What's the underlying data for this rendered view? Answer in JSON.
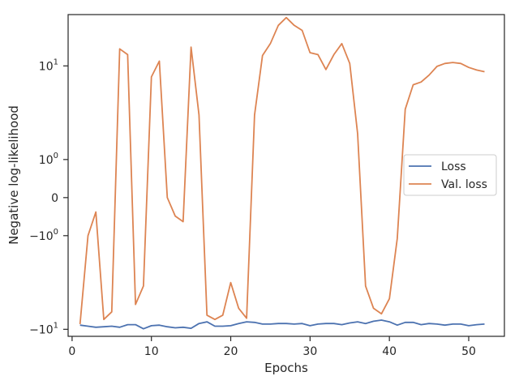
{
  "chart_data": {
    "type": "line",
    "xlabel": "Epochs",
    "ylabel": "Negative log-likelihood",
    "yscale": "symlog",
    "xlim": [
      -0.5,
      54.5
    ],
    "ylim": [
      -11.5,
      27
    ],
    "grid": false,
    "legend_position": "center-right",
    "x_ticks": [
      0,
      10,
      20,
      30,
      40,
      50
    ],
    "y_ticks": [
      {
        "value": 10,
        "label": "10",
        "exp": "1"
      },
      {
        "value": 1,
        "label": "10",
        "exp": "0"
      },
      {
        "value": 0,
        "label": "0",
        "exp": ""
      },
      {
        "value": -1,
        "label": "−10",
        "exp": "0"
      },
      {
        "value": -10,
        "label": "−10",
        "exp": "1"
      }
    ],
    "x": [
      1,
      2,
      3,
      4,
      5,
      6,
      7,
      8,
      9,
      10,
      11,
      12,
      13,
      14,
      15,
      16,
      17,
      18,
      19,
      20,
      21,
      22,
      23,
      24,
      25,
      26,
      27,
      28,
      29,
      30,
      31,
      32,
      33,
      34,
      35,
      36,
      37,
      38,
      39,
      40,
      41,
      42,
      43,
      44,
      45,
      46,
      47,
      48,
      49,
      50,
      51,
      52
    ],
    "series": [
      {
        "name": "Loss",
        "color": "#4c72b0",
        "values": [
          -9.2,
          -9.4,
          -9.6,
          -9.5,
          -9.4,
          -9.6,
          -9.1,
          -9.1,
          -9.9,
          -9.3,
          -9.2,
          -9.5,
          -9.7,
          -9.6,
          -9.8,
          -8.9,
          -8.6,
          -9.4,
          -9.4,
          -9.3,
          -8.9,
          -8.6,
          -8.7,
          -9.0,
          -9.0,
          -8.9,
          -8.9,
          -9.0,
          -8.9,
          -9.3,
          -9.0,
          -8.9,
          -8.9,
          -9.1,
          -8.8,
          -8.6,
          -8.9,
          -8.5,
          -8.3,
          -8.6,
          -9.2,
          -8.7,
          -8.7,
          -9.1,
          -8.9,
          -9.0,
          -9.2,
          -9.0,
          -9.0,
          -9.3,
          -9.1,
          -9.0
        ]
      },
      {
        "name": "Val. loss",
        "color": "#dd8452",
        "values": [
          -9.0,
          -1.0,
          -0.3,
          -8.2,
          -7.0,
          14.0,
          12.5,
          -6.0,
          -4.0,
          8.0,
          11.0,
          0.0,
          -0.4,
          -0.55,
          14.5,
          3.5,
          -7.5,
          -8.2,
          -7.5,
          -3.7,
          -6.5,
          -8.0,
          3.5,
          12.3,
          15.5,
          22.0,
          25.5,
          22.0,
          20.0,
          13.0,
          12.5,
          9.3,
          12.5,
          15.5,
          10.5,
          2.2,
          -4.0,
          -6.5,
          -7.3,
          -5.3,
          -1.1,
          4.0,
          6.8,
          7.2,
          8.3,
          9.9,
          10.5,
          10.7,
          10.5,
          9.7,
          9.2,
          8.9
        ]
      }
    ]
  }
}
